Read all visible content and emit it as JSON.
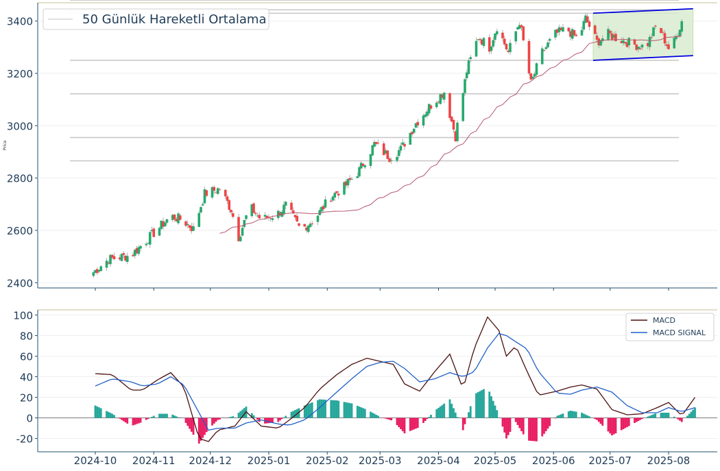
{
  "chart_data": [
    {
      "type": "candlestick",
      "title": "",
      "ylabel": "Price",
      "ylim": [
        2380,
        3470
      ],
      "yticks": [
        2400,
        2600,
        2800,
        3000,
        3200,
        3400
      ],
      "legend": {
        "label": "50 Günlük Hareketli Ortalama",
        "position": "top-left"
      },
      "colors": {
        "up": "#26a96c",
        "down": "#ef4444",
        "ma": "#b5566e",
        "channel_line": "#0000dd",
        "channel_fill": "#d9ecd0",
        "level_line": "#c9c9c9"
      },
      "levels": [
        3480,
        3443,
        3430,
        3250,
        3122,
        2955,
        2866
      ],
      "close_anchors": [
        [
          "2024-09-30",
          2440
        ],
        [
          "2024-10-08",
          2490
        ],
        [
          "2024-10-20",
          2505
        ],
        [
          "2024-11-01",
          2590
        ],
        [
          "2024-11-10",
          2655
        ],
        [
          "2024-11-16",
          2640
        ],
        [
          "2024-11-22",
          2605
        ],
        [
          "2024-11-28",
          2740
        ],
        [
          "2024-12-06",
          2760
        ],
        [
          "2024-12-12",
          2680
        ],
        [
          "2024-12-16",
          2575
        ],
        [
          "2024-12-22",
          2690
        ],
        [
          "2024-12-28",
          2640
        ],
        [
          "2025-01-06",
          2665
        ],
        [
          "2025-01-10",
          2695
        ],
        [
          "2025-01-18",
          2600
        ],
        [
          "2025-01-26",
          2650
        ],
        [
          "2025-02-03",
          2730
        ],
        [
          "2025-02-10",
          2765
        ],
        [
          "2025-02-18",
          2830
        ],
        [
          "2025-02-26",
          2930
        ],
        [
          "2025-03-06",
          2880
        ],
        [
          "2025-03-12",
          2910
        ],
        [
          "2025-03-20",
          3010
        ],
        [
          "2025-03-28",
          3080
        ],
        [
          "2025-04-04",
          3130
        ],
        [
          "2025-04-10",
          2960
        ],
        [
          "2025-04-16",
          3210
        ],
        [
          "2025-04-22",
          3340
        ],
        [
          "2025-04-28",
          3300
        ],
        [
          "2025-05-02",
          3380
        ],
        [
          "2025-05-08",
          3280
        ],
        [
          "2025-05-14",
          3400
        ],
        [
          "2025-05-20",
          3160
        ],
        [
          "2025-05-26",
          3280
        ],
        [
          "2025-06-02",
          3350
        ],
        [
          "2025-06-08",
          3370
        ],
        [
          "2025-06-14",
          3330
        ],
        [
          "2025-06-18",
          3410
        ],
        [
          "2025-06-24",
          3320
        ],
        [
          "2025-06-30",
          3350
        ],
        [
          "2025-07-06",
          3330
        ],
        [
          "2025-07-14",
          3310
        ],
        [
          "2025-07-20",
          3300
        ],
        [
          "2025-07-26",
          3390
        ],
        [
          "2025-08-02",
          3280
        ],
        [
          "2025-08-06",
          3360
        ],
        [
          "2025-08-10",
          3440
        ]
      ],
      "channel": {
        "start": "2025-06-22",
        "end": "2025-08-14",
        "upper": [
          3430,
          3447
        ],
        "lower": [
          3250,
          3268
        ]
      }
    },
    {
      "type": "line+bar",
      "ylim": [
        -33,
        105
      ],
      "yticks": [
        -20,
        0,
        20,
        40,
        60,
        80,
        100
      ],
      "xticks": [
        "2024-10",
        "2024-11",
        "2024-12",
        "2025-01",
        "2025-02",
        "2025-03",
        "2025-04",
        "2025-05",
        "2025-06",
        "2025-07",
        "2025-08"
      ],
      "legend_position": "top-right",
      "colors": {
        "macd": "#4a0e0e",
        "signal": "#1f5fc7",
        "hist_pos": "#26a69a",
        "hist_neg": "#e91e63"
      },
      "series": [
        {
          "name": "MACD",
          "points": [
            [
              "2024-10-01",
              43
            ],
            [
              "2024-10-10",
              42
            ],
            [
              "2024-10-20",
              27
            ],
            [
              "2024-10-26",
              27
            ],
            [
              "2024-11-03",
              37
            ],
            [
              "2024-11-10",
              44
            ],
            [
              "2024-11-17",
              30
            ],
            [
              "2024-11-25",
              -20
            ],
            [
              "2024-11-30",
              -23
            ],
            [
              "2024-12-05",
              -12
            ],
            [
              "2024-12-14",
              -8
            ],
            [
              "2024-12-20",
              6
            ],
            [
              "2024-12-28",
              -8
            ],
            [
              "2025-01-06",
              -10
            ],
            [
              "2025-01-12",
              -2
            ],
            [
              "2025-01-20",
              10
            ],
            [
              "2025-01-28",
              28
            ],
            [
              "2025-02-06",
              42
            ],
            [
              "2025-02-14",
              52
            ],
            [
              "2025-02-22",
              58
            ],
            [
              "2025-03-01",
              55
            ],
            [
              "2025-03-08",
              52
            ],
            [
              "2025-03-14",
              33
            ],
            [
              "2025-03-22",
              26
            ],
            [
              "2025-03-30",
              45
            ],
            [
              "2025-04-07",
              62
            ],
            [
              "2025-04-14",
              28
            ],
            [
              "2025-04-20",
              68
            ],
            [
              "2025-04-27",
              98
            ],
            [
              "2025-05-03",
              85
            ],
            [
              "2025-05-07",
              60
            ],
            [
              "2025-05-12",
              70
            ],
            [
              "2025-05-18",
              45
            ],
            [
              "2025-05-24",
              22
            ],
            [
              "2025-06-03",
              26
            ],
            [
              "2025-06-10",
              30
            ],
            [
              "2025-06-16",
              32
            ],
            [
              "2025-06-24",
              28
            ],
            [
              "2025-07-02",
              8
            ],
            [
              "2025-07-10",
              3
            ],
            [
              "2025-07-18",
              4
            ],
            [
              "2025-07-26",
              10
            ],
            [
              "2025-08-01",
              15
            ],
            [
              "2025-08-08",
              2
            ],
            [
              "2025-08-15",
              20
            ]
          ]
        },
        {
          "name": "MACD SIGNAL",
          "points": [
            [
              "2024-10-01",
              31
            ],
            [
              "2024-10-10",
              38
            ],
            [
              "2024-10-20",
              35
            ],
            [
              "2024-10-26",
              31
            ],
            [
              "2024-11-03",
              33
            ],
            [
              "2024-11-10",
              40
            ],
            [
              "2024-11-17",
              32
            ],
            [
              "2024-11-25",
              5
            ],
            [
              "2024-11-30",
              -12
            ],
            [
              "2024-12-05",
              -10
            ],
            [
              "2024-12-14",
              -10
            ],
            [
              "2024-12-20",
              -5
            ],
            [
              "2024-12-28",
              -2
            ],
            [
              "2025-01-06",
              -6
            ],
            [
              "2025-01-12",
              -7
            ],
            [
              "2025-01-20",
              -2
            ],
            [
              "2025-01-28",
              10
            ],
            [
              "2025-02-06",
              25
            ],
            [
              "2025-02-14",
              38
            ],
            [
              "2025-02-22",
              50
            ],
            [
              "2025-03-01",
              54
            ],
            [
              "2025-03-08",
              55
            ],
            [
              "2025-03-14",
              48
            ],
            [
              "2025-03-22",
              35
            ],
            [
              "2025-03-30",
              38
            ],
            [
              "2025-04-07",
              44
            ],
            [
              "2025-04-14",
              40
            ],
            [
              "2025-04-20",
              45
            ],
            [
              "2025-04-27",
              68
            ],
            [
              "2025-05-03",
              82
            ],
            [
              "2025-05-07",
              80
            ],
            [
              "2025-05-12",
              74
            ],
            [
              "2025-05-18",
              67
            ],
            [
              "2025-05-24",
              45
            ],
            [
              "2025-06-03",
              24
            ],
            [
              "2025-06-10",
              23
            ],
            [
              "2025-06-16",
              27
            ],
            [
              "2025-06-24",
              30
            ],
            [
              "2025-07-02",
              25
            ],
            [
              "2025-07-10",
              12
            ],
            [
              "2025-07-18",
              5
            ],
            [
              "2025-07-26",
              5
            ],
            [
              "2025-08-01",
              10
            ],
            [
              "2025-08-08",
              6
            ],
            [
              "2025-08-15",
              10
            ]
          ]
        }
      ]
    }
  ]
}
